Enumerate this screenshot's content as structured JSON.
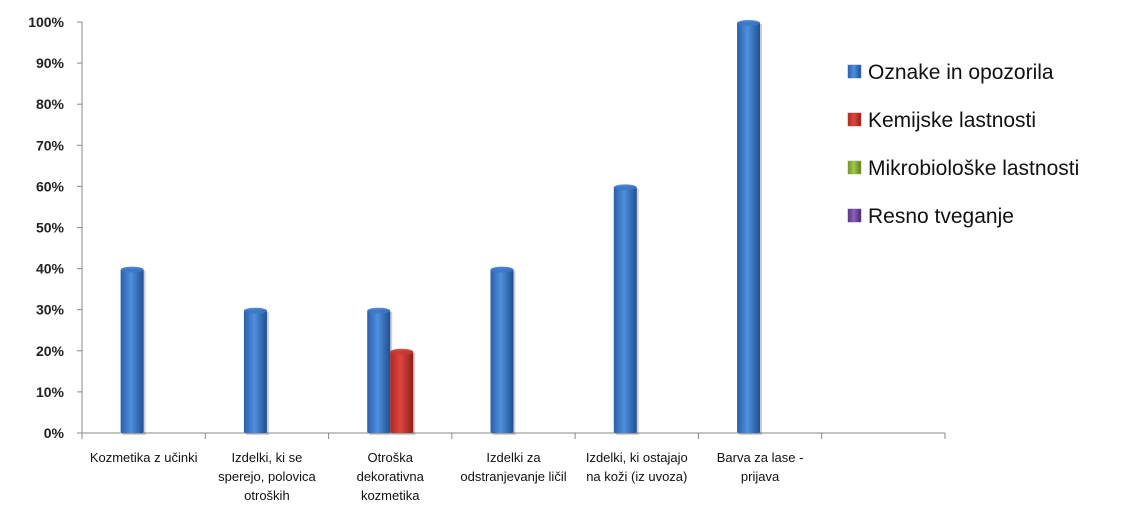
{
  "chart_data": {
    "type": "bar",
    "title": "",
    "xlabel": "",
    "ylabel": "",
    "ylim": [
      0,
      100
    ],
    "y_ticks": [
      "0%",
      "10%",
      "20%",
      "30%",
      "40%",
      "50%",
      "60%",
      "70%",
      "80%",
      "90%",
      "100%"
    ],
    "categories": [
      [
        "Kozmetika z učinki"
      ],
      [
        "Izdelki, ki se",
        "sperejo, polovica",
        "otroških"
      ],
      [
        "Otroška",
        "dekorativna",
        "kozmetika"
      ],
      [
        "Izdelki za",
        "odstranjevanje ličil"
      ],
      [
        "Izdelki, ki ostajajo",
        "na koži (iz uvoza)"
      ],
      [
        "Barva za lase -",
        "prijava"
      ],
      [
        ""
      ]
    ],
    "series": [
      {
        "name": "Oznake in opozorila",
        "color": "#3b78c9",
        "values": [
          40,
          30,
          30,
          40,
          60,
          100,
          null
        ]
      },
      {
        "name": "Kemijske lastnosti",
        "color": "#c93a34",
        "values": [
          null,
          null,
          20,
          null,
          null,
          null,
          null
        ]
      },
      {
        "name": "Mikrobiološke lastnosti",
        "color": "#8db23c",
        "values": [
          null,
          null,
          null,
          null,
          null,
          null,
          null
        ]
      },
      {
        "name": "Resno tveganje",
        "color": "#6f4a9e",
        "values": [
          null,
          null,
          null,
          null,
          null,
          null,
          null
        ]
      }
    ],
    "grid": false,
    "legend_position": "right"
  }
}
